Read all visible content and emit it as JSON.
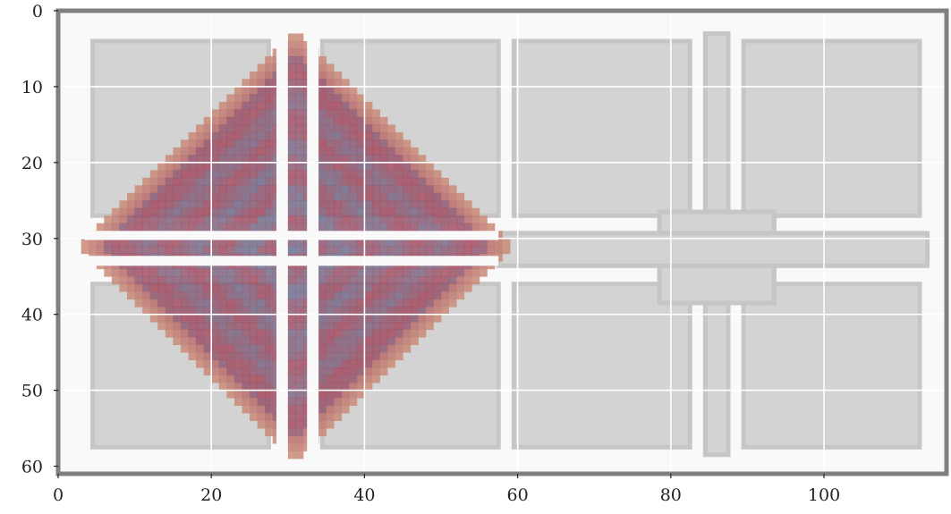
{
  "chart_data": {
    "type": "heatmap",
    "title": "",
    "xlabel": "",
    "ylabel": "",
    "xlim": [
      0,
      116
    ],
    "ylim": [
      61,
      0
    ],
    "x_ticks": [
      0,
      20,
      40,
      60,
      80,
      100
    ],
    "y_ticks": [
      0,
      10,
      20,
      30,
      40,
      50,
      60
    ],
    "x_tick_labels": [
      "0",
      "20",
      "40",
      "60",
      "80",
      "100"
    ],
    "y_tick_labels": [
      "0",
      "10",
      "20",
      "30",
      "40",
      "50",
      "60"
    ],
    "grid": true,
    "grid_lines_x": [
      20,
      40,
      60,
      80,
      100
    ],
    "grid_lines_y": [
      10,
      20,
      30,
      40,
      50
    ],
    "colors": {
      "background": "#f9f9f9",
      "frame": "#7f7f7f",
      "wall": "#d3d3d3",
      "wall_edge": "#c6c6c6",
      "field_low": "#d19a7d",
      "field_mid": "#a44a5e",
      "field_high": "#5a7fa3",
      "grid": "#ffffff"
    },
    "series": [
      {
        "kind": "wall_block",
        "cells": [
          {
            "x": [
              4.5,
              27.5
            ],
            "y": [
              4,
              27
            ]
          },
          {
            "x": [
              34.5,
              57.5
            ],
            "y": [
              4,
              27
            ]
          },
          {
            "x": [
              4.5,
              27.5
            ],
            "y": [
              36,
              57.5
            ]
          },
          {
            "x": [
              34.5,
              57.5
            ],
            "y": [
              36,
              57.5
            ]
          },
          {
            "x": [
              59.5,
              82.5
            ],
            "y": [
              4,
              27
            ]
          },
          {
            "x": [
              59.5,
              82.5
            ],
            "y": [
              36,
              57.5
            ]
          },
          {
            "x": [
              89.5,
              112.5
            ],
            "y": [
              4,
              27
            ]
          },
          {
            "x": [
              89.5,
              112.5
            ],
            "y": [
              36,
              57.5
            ]
          },
          {
            "x": [
              84.5,
              87.5
            ],
            "y": [
              3,
              58.5
            ]
          },
          {
            "x": [
              78.5,
              93.5
            ],
            "y": [
              26.5,
              38.5
            ]
          },
          {
            "x": [
              57.5,
              113.5
            ],
            "y": [
              29.3,
              33.6
            ]
          }
        ]
      },
      {
        "kind": "field",
        "center": [
          31,
          31
        ],
        "radius": 28.5,
        "value_range": [
          0,
          1
        ]
      }
    ]
  }
}
